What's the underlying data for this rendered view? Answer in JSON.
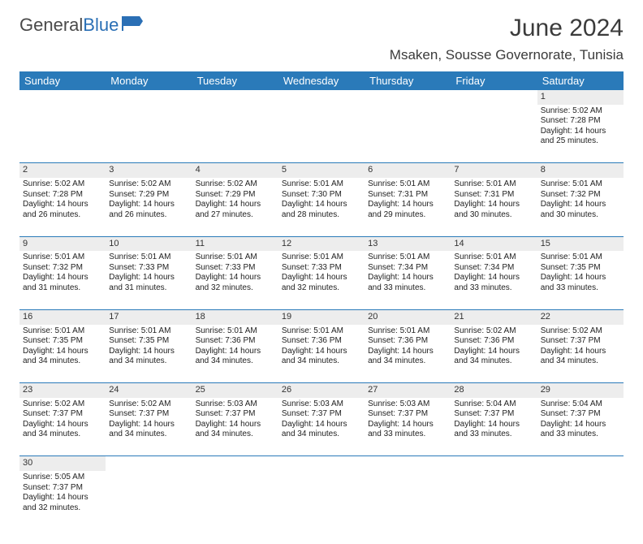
{
  "brand": {
    "part1": "General",
    "part2": "Blue"
  },
  "title": "June 2024",
  "location": "Msaken, Sousse Governorate, Tunisia",
  "colors": {
    "header_bg": "#2a7ab9",
    "header_fg": "#ffffff",
    "daynum_bg": "#ededed",
    "rule": "#2a7ab9"
  },
  "day_headers": [
    "Sunday",
    "Monday",
    "Tuesday",
    "Wednesday",
    "Thursday",
    "Friday",
    "Saturday"
  ],
  "weeks": [
    [
      null,
      null,
      null,
      null,
      null,
      null,
      {
        "n": "1",
        "sr": "Sunrise: 5:02 AM",
        "ss": "Sunset: 7:28 PM",
        "dl": "Daylight: 14 hours and 25 minutes."
      }
    ],
    [
      {
        "n": "2",
        "sr": "Sunrise: 5:02 AM",
        "ss": "Sunset: 7:28 PM",
        "dl": "Daylight: 14 hours and 26 minutes."
      },
      {
        "n": "3",
        "sr": "Sunrise: 5:02 AM",
        "ss": "Sunset: 7:29 PM",
        "dl": "Daylight: 14 hours and 26 minutes."
      },
      {
        "n": "4",
        "sr": "Sunrise: 5:02 AM",
        "ss": "Sunset: 7:29 PM",
        "dl": "Daylight: 14 hours and 27 minutes."
      },
      {
        "n": "5",
        "sr": "Sunrise: 5:01 AM",
        "ss": "Sunset: 7:30 PM",
        "dl": "Daylight: 14 hours and 28 minutes."
      },
      {
        "n": "6",
        "sr": "Sunrise: 5:01 AM",
        "ss": "Sunset: 7:31 PM",
        "dl": "Daylight: 14 hours and 29 minutes."
      },
      {
        "n": "7",
        "sr": "Sunrise: 5:01 AM",
        "ss": "Sunset: 7:31 PM",
        "dl": "Daylight: 14 hours and 30 minutes."
      },
      {
        "n": "8",
        "sr": "Sunrise: 5:01 AM",
        "ss": "Sunset: 7:32 PM",
        "dl": "Daylight: 14 hours and 30 minutes."
      }
    ],
    [
      {
        "n": "9",
        "sr": "Sunrise: 5:01 AM",
        "ss": "Sunset: 7:32 PM",
        "dl": "Daylight: 14 hours and 31 minutes."
      },
      {
        "n": "10",
        "sr": "Sunrise: 5:01 AM",
        "ss": "Sunset: 7:33 PM",
        "dl": "Daylight: 14 hours and 31 minutes."
      },
      {
        "n": "11",
        "sr": "Sunrise: 5:01 AM",
        "ss": "Sunset: 7:33 PM",
        "dl": "Daylight: 14 hours and 32 minutes."
      },
      {
        "n": "12",
        "sr": "Sunrise: 5:01 AM",
        "ss": "Sunset: 7:33 PM",
        "dl": "Daylight: 14 hours and 32 minutes."
      },
      {
        "n": "13",
        "sr": "Sunrise: 5:01 AM",
        "ss": "Sunset: 7:34 PM",
        "dl": "Daylight: 14 hours and 33 minutes."
      },
      {
        "n": "14",
        "sr": "Sunrise: 5:01 AM",
        "ss": "Sunset: 7:34 PM",
        "dl": "Daylight: 14 hours and 33 minutes."
      },
      {
        "n": "15",
        "sr": "Sunrise: 5:01 AM",
        "ss": "Sunset: 7:35 PM",
        "dl": "Daylight: 14 hours and 33 minutes."
      }
    ],
    [
      {
        "n": "16",
        "sr": "Sunrise: 5:01 AM",
        "ss": "Sunset: 7:35 PM",
        "dl": "Daylight: 14 hours and 34 minutes."
      },
      {
        "n": "17",
        "sr": "Sunrise: 5:01 AM",
        "ss": "Sunset: 7:35 PM",
        "dl": "Daylight: 14 hours and 34 minutes."
      },
      {
        "n": "18",
        "sr": "Sunrise: 5:01 AM",
        "ss": "Sunset: 7:36 PM",
        "dl": "Daylight: 14 hours and 34 minutes."
      },
      {
        "n": "19",
        "sr": "Sunrise: 5:01 AM",
        "ss": "Sunset: 7:36 PM",
        "dl": "Daylight: 14 hours and 34 minutes."
      },
      {
        "n": "20",
        "sr": "Sunrise: 5:01 AM",
        "ss": "Sunset: 7:36 PM",
        "dl": "Daylight: 14 hours and 34 minutes."
      },
      {
        "n": "21",
        "sr": "Sunrise: 5:02 AM",
        "ss": "Sunset: 7:36 PM",
        "dl": "Daylight: 14 hours and 34 minutes."
      },
      {
        "n": "22",
        "sr": "Sunrise: 5:02 AM",
        "ss": "Sunset: 7:37 PM",
        "dl": "Daylight: 14 hours and 34 minutes."
      }
    ],
    [
      {
        "n": "23",
        "sr": "Sunrise: 5:02 AM",
        "ss": "Sunset: 7:37 PM",
        "dl": "Daylight: 14 hours and 34 minutes."
      },
      {
        "n": "24",
        "sr": "Sunrise: 5:02 AM",
        "ss": "Sunset: 7:37 PM",
        "dl": "Daylight: 14 hours and 34 minutes."
      },
      {
        "n": "25",
        "sr": "Sunrise: 5:03 AM",
        "ss": "Sunset: 7:37 PM",
        "dl": "Daylight: 14 hours and 34 minutes."
      },
      {
        "n": "26",
        "sr": "Sunrise: 5:03 AM",
        "ss": "Sunset: 7:37 PM",
        "dl": "Daylight: 14 hours and 34 minutes."
      },
      {
        "n": "27",
        "sr": "Sunrise: 5:03 AM",
        "ss": "Sunset: 7:37 PM",
        "dl": "Daylight: 14 hours and 33 minutes."
      },
      {
        "n": "28",
        "sr": "Sunrise: 5:04 AM",
        "ss": "Sunset: 7:37 PM",
        "dl": "Daylight: 14 hours and 33 minutes."
      },
      {
        "n": "29",
        "sr": "Sunrise: 5:04 AM",
        "ss": "Sunset: 7:37 PM",
        "dl": "Daylight: 14 hours and 33 minutes."
      }
    ],
    [
      {
        "n": "30",
        "sr": "Sunrise: 5:05 AM",
        "ss": "Sunset: 7:37 PM",
        "dl": "Daylight: 14 hours and 32 minutes."
      },
      null,
      null,
      null,
      null,
      null,
      null
    ]
  ]
}
